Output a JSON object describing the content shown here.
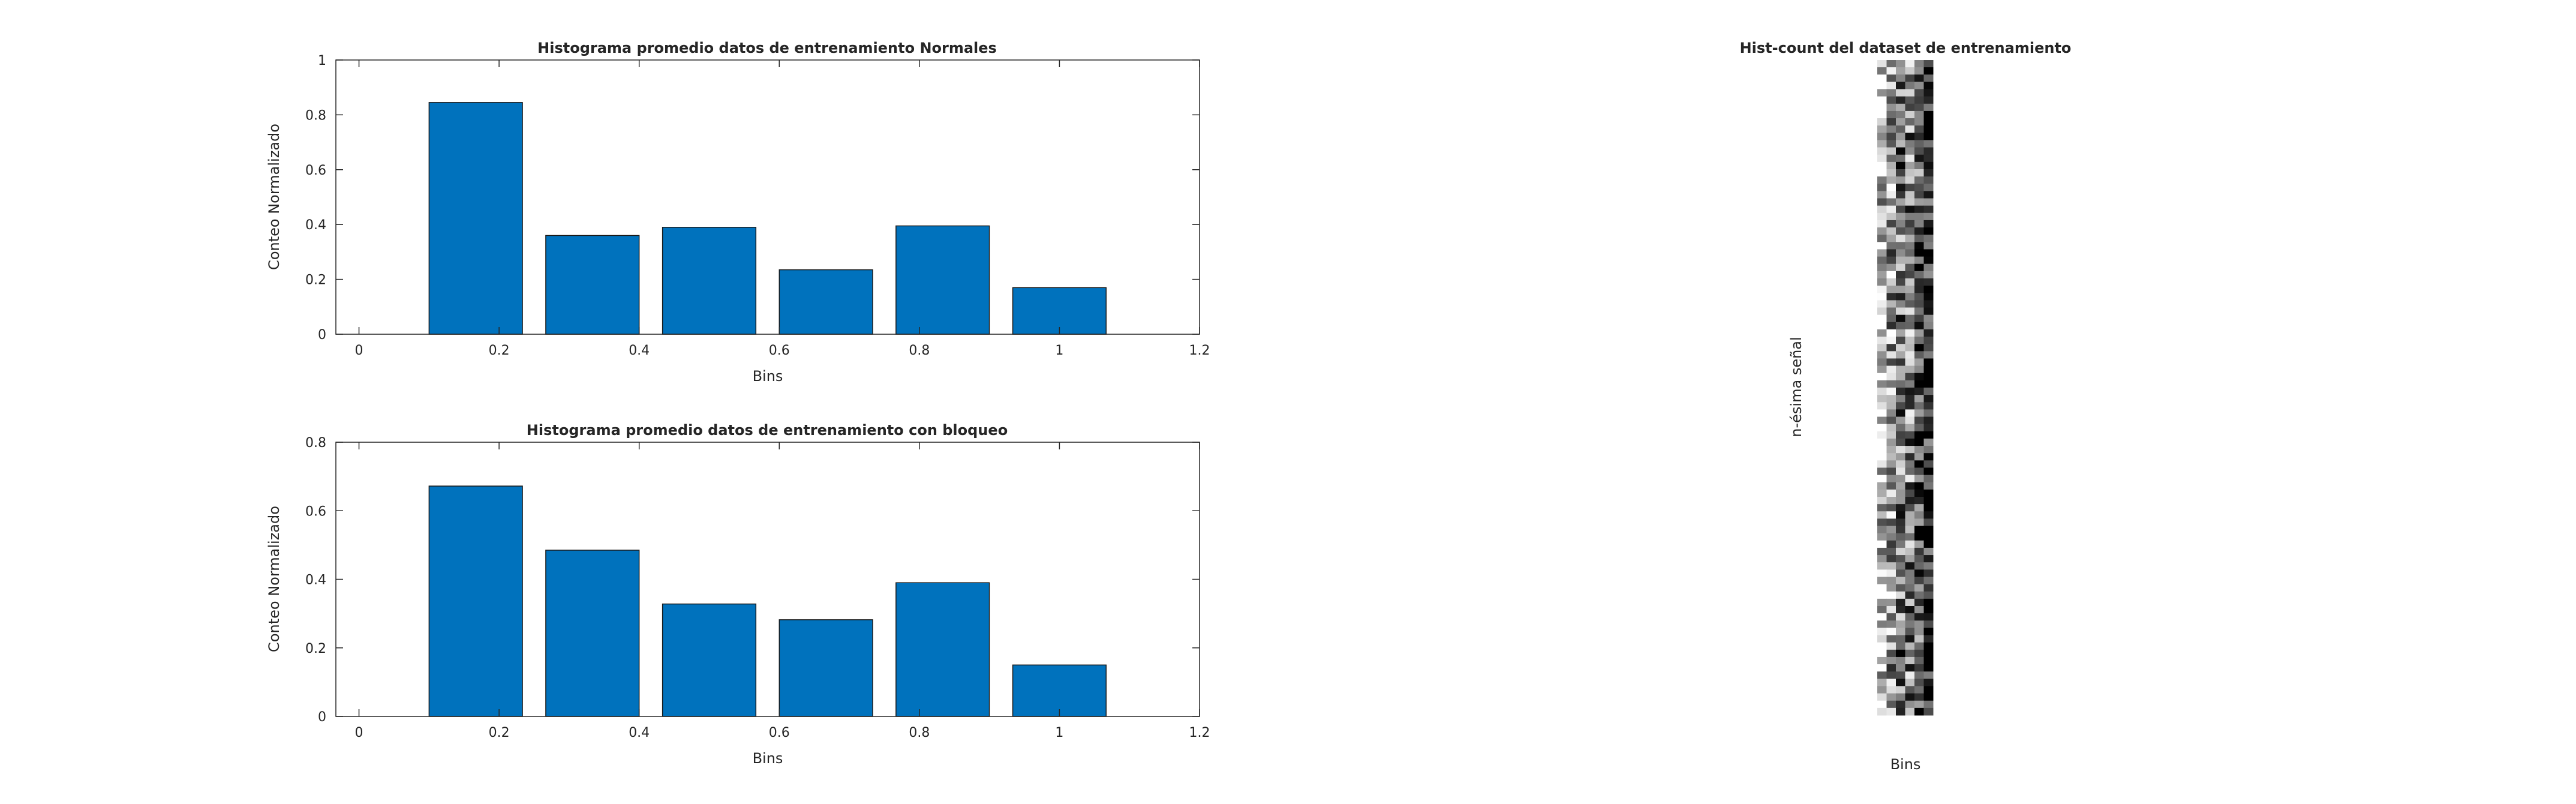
{
  "figure": {
    "background": "#ffffff",
    "axis_color": "#262626",
    "bar_color": "#0072bd"
  },
  "chart_data": [
    {
      "type": "bar",
      "title": "Histograma promedio datos de entrenamiento Normales",
      "xlabel": "Bins",
      "ylabel": "Conteo Normalizado",
      "x": [
        0.1667,
        0.3333,
        0.5,
        0.6667,
        0.8333,
        1.0
      ],
      "values": [
        0.845,
        0.36,
        0.39,
        0.235,
        0.395,
        0.17
      ],
      "xlim": [
        -0.033,
        1.2
      ],
      "ylim": [
        0,
        1
      ],
      "xticks": [
        0,
        0.2,
        0.4,
        0.6,
        0.8,
        1,
        1.2
      ],
      "xtick_labels": [
        "0",
        "0.2",
        "0.4",
        "0.6",
        "0.8",
        "1",
        "1.2"
      ],
      "yticks": [
        0,
        0.2,
        0.4,
        0.6,
        0.8,
        1
      ],
      "ytick_labels": [
        "0",
        "0.2",
        "0.4",
        "0.6",
        "0.8",
        "1"
      ],
      "bar_width": 0.1333,
      "color": "#0072bd",
      "grid": false
    },
    {
      "type": "bar",
      "title": "Histograma promedio datos de entrenamiento con bloqueo",
      "xlabel": "Bins",
      "ylabel": "Conteo Normalizado",
      "x": [
        0.1667,
        0.3333,
        0.5,
        0.6667,
        0.8333,
        1.0
      ],
      "values": [
        0.672,
        0.485,
        0.328,
        0.282,
        0.39,
        0.15
      ],
      "xlim": [
        -0.033,
        1.2
      ],
      "ylim": [
        0,
        0.8
      ],
      "xticks": [
        0,
        0.2,
        0.4,
        0.6,
        0.8,
        1,
        1.2
      ],
      "xtick_labels": [
        "0",
        "0.2",
        "0.4",
        "0.6",
        "0.8",
        "1",
        "1.2"
      ],
      "yticks": [
        0,
        0.2,
        0.4,
        0.6,
        0.8
      ],
      "ytick_labels": [
        "0",
        "0.2",
        "0.4",
        "0.6",
        "0.8"
      ],
      "bar_width": 0.1333,
      "color": "#0072bd",
      "grid": false
    },
    {
      "type": "heatmap",
      "title": "Hist-count del dataset de entrenamiento",
      "xlabel": "Bins",
      "ylabel": "n-ésima señal",
      "colormap": "gray",
      "columns": 6,
      "rows": 90,
      "values": []
    }
  ]
}
